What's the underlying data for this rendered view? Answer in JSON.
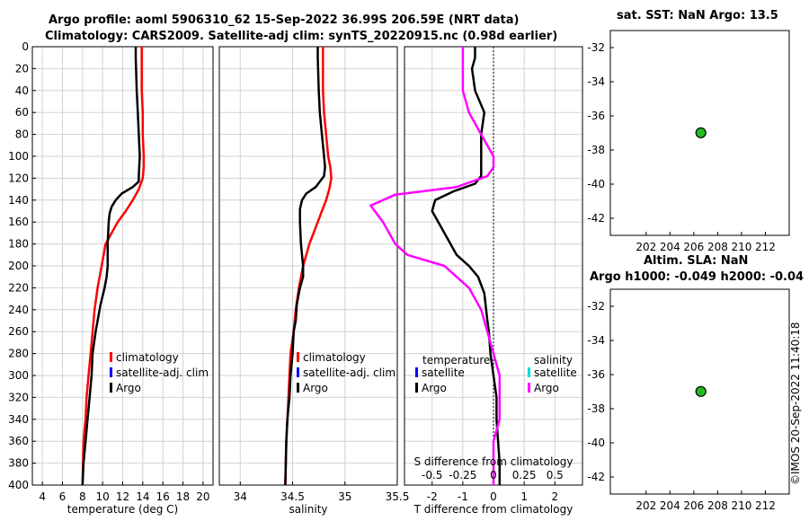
{
  "header": {
    "title_line1": "Argo profile: aoml 5906310_62 15-Sep-2022 36.99S 206.59E (NRT data)",
    "title_line2": "Climatology: CARS2009. Satellite-adj clim: synTS_20220915.nc (0.98d earlier)",
    "sst_title": "sat. SST: NaN Argo: 13.5",
    "sla_title_line1": "Altim. SLA: NaN",
    "sla_title_line2": "Argo h1000: -0.049 h2000: -0.04",
    "stamp": "©IMOS 20-Sep-2022 11:40:18"
  },
  "colors": {
    "climatology": "#ff0000",
    "satellite": "#0000ff",
    "argo": "#000000",
    "salinity_satellite": "#00dddd",
    "salinity_argo": "#ff00ff",
    "position_marker": "#22bb22"
  },
  "chart_data": [
    {
      "type": "line",
      "xlabel": "temperature (deg C)",
      "ylabel": "",
      "xlim": [
        3,
        21
      ],
      "ylim": [
        400,
        0
      ],
      "xticks": [
        4,
        6,
        8,
        10,
        12,
        14,
        16,
        18,
        20
      ],
      "yticks": [
        0,
        20,
        40,
        60,
        80,
        100,
        120,
        140,
        160,
        180,
        200,
        220,
        240,
        260,
        280,
        300,
        320,
        340,
        360,
        380,
        400
      ],
      "grid": true,
      "legend": [
        "climatology",
        "satellite-adj. clim",
        "Argo"
      ],
      "series": [
        {
          "name": "climatology",
          "x": [
            13.9,
            13.9,
            13.9,
            14.0,
            14.0,
            14.1,
            14.1,
            14.0,
            13.6,
            13.0,
            12.3,
            11.5,
            10.9,
            10.3,
            9.9,
            9.5,
            9.2,
            9.0,
            8.8,
            8.6,
            8.4,
            8.3,
            8.1,
            8.0
          ],
          "y": [
            0,
            20,
            40,
            60,
            80,
            100,
            110,
            120,
            130,
            140,
            150,
            160,
            170,
            180,
            200,
            220,
            240,
            260,
            280,
            300,
            320,
            340,
            360,
            400
          ]
        },
        {
          "name": "Argo",
          "x": [
            13.3,
            13.3,
            13.4,
            13.5,
            13.6,
            13.7,
            13.6,
            13.6,
            13.0,
            11.9,
            11.3,
            10.9,
            10.7,
            10.6,
            10.5,
            10.5,
            10.4,
            10.2,
            9.8,
            9.5,
            9.3,
            9.0,
            8.9,
            8.7,
            8.5,
            8.3,
            8.1,
            8.0
          ],
          "y": [
            0,
            10,
            40,
            60,
            80,
            100,
            118,
            123,
            128,
            134,
            140,
            146,
            152,
            160,
            180,
            200,
            210,
            220,
            235,
            250,
            260,
            280,
            300,
            320,
            340,
            360,
            380,
            400
          ]
        }
      ]
    },
    {
      "type": "line",
      "xlabel": "salinity",
      "xlim": [
        33.8,
        35.5
      ],
      "ylim": [
        400,
        0
      ],
      "xticks": [
        34,
        34.5,
        35,
        35.5
      ],
      "grid": true,
      "legend": [
        "climatology",
        "satellite-adj. clim",
        "Argo"
      ],
      "series": [
        {
          "name": "climatology",
          "x": [
            34.79,
            34.79,
            34.79,
            34.8,
            34.82,
            34.84,
            34.86,
            34.87,
            34.85,
            34.82,
            34.78,
            34.74,
            34.7,
            34.66,
            34.6,
            34.56,
            34.53,
            34.51,
            34.48,
            34.47,
            34.46,
            34.45,
            34.44,
            34.43
          ],
          "y": [
            0,
            20,
            40,
            60,
            80,
            100,
            110,
            120,
            130,
            140,
            150,
            160,
            170,
            180,
            200,
            220,
            240,
            260,
            280,
            300,
            320,
            340,
            360,
            400
          ]
        },
        {
          "name": "Argo",
          "x": [
            34.74,
            34.74,
            34.75,
            34.76,
            34.78,
            34.8,
            34.81,
            34.8,
            34.72,
            34.63,
            34.59,
            34.57,
            34.57,
            34.58,
            34.6,
            34.6,
            34.57,
            34.54,
            34.53,
            34.51,
            34.5,
            34.48,
            34.47,
            34.45,
            34.44,
            34.43
          ],
          "y": [
            0,
            10,
            40,
            60,
            80,
            100,
            110,
            118,
            128,
            134,
            140,
            148,
            160,
            180,
            200,
            210,
            220,
            235,
            250,
            260,
            280,
            300,
            320,
            340,
            360,
            400
          ]
        }
      ]
    },
    {
      "type": "line",
      "xlabel": "T difference from climatology",
      "x2label": "S difference from climatology",
      "xlim": [
        -2.9,
        2.9
      ],
      "ylim": [
        400,
        0
      ],
      "xticks": [
        -2,
        -1,
        0,
        1,
        2
      ],
      "x2ticks": [
        "-0.5",
        "-0.25",
        "0",
        "0.25",
        "0.5"
      ],
      "grid": true,
      "legend_temperature_title": "temperature",
      "legend_salinity_title": "salinity",
      "legend": [
        "satellite",
        "Argo",
        "satellite",
        "Argo"
      ],
      "series": [
        {
          "name": "Argo",
          "x": [
            -0.6,
            -0.6,
            -0.7,
            -0.6,
            -0.3,
            -0.4,
            -0.4,
            -0.4,
            -0.6,
            -1.3,
            -1.9,
            -2.0,
            -1.8,
            -1.5,
            -1.2,
            -0.8,
            -0.5,
            -0.3,
            -0.2,
            -0.15,
            -0.1,
            0.0,
            0.1,
            0.1,
            0.15,
            0.2,
            0.2
          ],
          "y": [
            0,
            10,
            20,
            40,
            60,
            80,
            100,
            118,
            125,
            132,
            140,
            150,
            160,
            175,
            190,
            200,
            210,
            225,
            250,
            260,
            280,
            300,
            320,
            340,
            360,
            380,
            400
          ]
        },
        {
          "name": "Argo",
          "x": [
            -0.25,
            -0.25,
            -0.25,
            -0.2,
            -0.1,
            0.0,
            0.0,
            -0.05,
            -0.3,
            -0.8,
            -1.0,
            -0.9,
            -0.8,
            -0.7,
            -0.4,
            -0.3,
            -0.2,
            -0.1,
            -0.05,
            0.0,
            0.05,
            0.05,
            0.05,
            0.0,
            0.0,
            0.0
          ],
          "y": [
            0,
            10,
            40,
            60,
            80,
            100,
            110,
            118,
            128,
            135,
            145,
            160,
            180,
            190,
            200,
            210,
            220,
            240,
            260,
            280,
            300,
            320,
            340,
            360,
            380,
            400
          ]
        }
      ]
    },
    {
      "type": "scatter",
      "xlim": [
        199,
        214
      ],
      "ylim": [
        -43,
        -31
      ],
      "xticks": [
        202,
        204,
        206,
        208,
        210,
        212
      ],
      "yticks": [
        -32,
        -34,
        -36,
        -38,
        -40,
        -42
      ],
      "series": [
        {
          "x": [
            206.59
          ],
          "y": [
            -36.99
          ]
        }
      ]
    },
    {
      "type": "scatter",
      "xlim": [
        199,
        214
      ],
      "ylim": [
        -43,
        -31
      ],
      "xticks": [
        202,
        204,
        206,
        208,
        210,
        212
      ],
      "yticks": [
        -32,
        -34,
        -36,
        -38,
        -40,
        -42
      ],
      "series": [
        {
          "x": [
            206.59
          ],
          "y": [
            -36.99
          ]
        }
      ]
    }
  ]
}
